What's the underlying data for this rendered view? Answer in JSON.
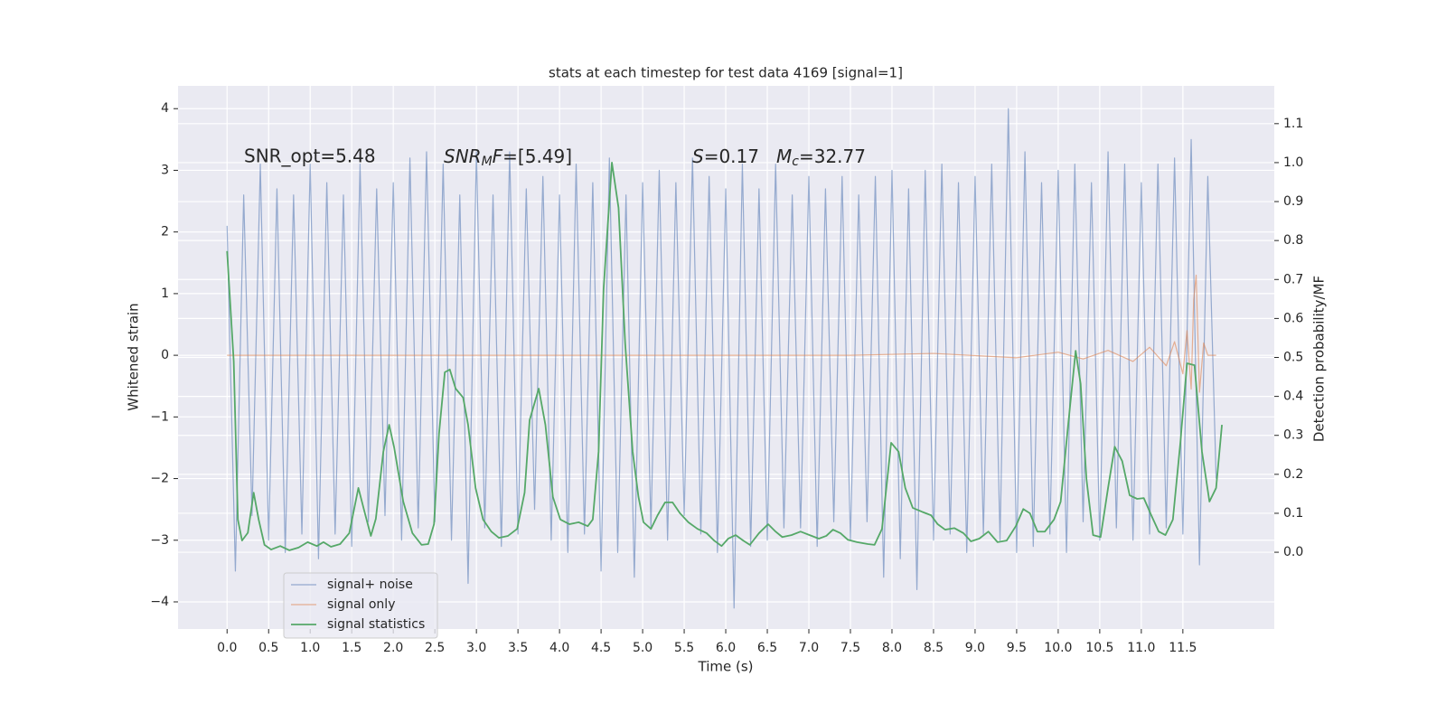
{
  "chart_data": {
    "type": "line",
    "title": "stats at each timestep for test data 4169 [signal=1]",
    "xlabel": "Time (s)",
    "ylabel": "Whitened strain",
    "y2label": "Detection probability/MF",
    "annotations": [
      [
        "SNR_opt=5.48"
      ],
      [
        "SNR",
        "M",
        "F",
        "=[5.49]"
      ],
      [
        "S",
        "=0.17"
      ],
      [
        "M",
        "c",
        "=32.77"
      ]
    ],
    "xlim": [
      -0.59,
      12.6
    ],
    "ylim": [
      -4.44,
      4.37
    ],
    "y2lim": [
      -0.197,
      1.197
    ],
    "xticks": [
      {
        "value": 0,
        "label": "0.0"
      },
      0.5,
      {
        "value": 1,
        "label": "1.0"
      },
      1.5,
      {
        "value": 2,
        "label": "2.0"
      },
      2.5,
      {
        "value": 3,
        "label": "3.0"
      },
      3.5,
      {
        "value": 4,
        "label": "4.0"
      },
      4.5,
      {
        "value": 5,
        "label": "5.0"
      },
      5.5,
      {
        "value": 6,
        "label": "6.0"
      },
      6.5,
      {
        "value": 7,
        "label": "7.0"
      },
      7.5,
      {
        "value": 8,
        "label": "8.0"
      },
      8.5,
      {
        "value": 9,
        "label": "9.0"
      },
      9.5,
      {
        "value": 10,
        "label": "10.0"
      },
      10.5,
      {
        "value": 11,
        "label": "11.0"
      },
      11.5
    ],
    "yticks": [
      {
        "value": -4,
        "label": "−4"
      },
      {
        "value": -3,
        "label": "−3"
      },
      {
        "value": -2,
        "label": "−2"
      },
      {
        "value": -1,
        "label": "−1"
      },
      0,
      1,
      2,
      3,
      4
    ],
    "y2ticks": [
      {
        "value": 0,
        "label": "0.0"
      },
      0.1,
      0.2,
      0.3,
      0.4,
      0.5,
      0.6,
      0.7,
      0.8,
      0.9,
      {
        "value": 1,
        "label": "1.0"
      },
      1.1
    ],
    "grid": true,
    "legend_position": "lower left",
    "series": [
      {
        "name": "signal+ noise",
        "color": "#4c72b0",
        "x": [
          0.0,
          0.1,
          0.2,
          0.3,
          0.4,
          0.5,
          0.6,
          0.7,
          0.8,
          0.9,
          1.0,
          1.1,
          1.2,
          1.3,
          1.4,
          1.5,
          1.6,
          1.7,
          1.8,
          1.9,
          2.0,
          2.1,
          2.2,
          2.3,
          2.4,
          2.5,
          2.6,
          2.7,
          2.8,
          2.9,
          3.0,
          3.1,
          3.2,
          3.3,
          3.4,
          3.5,
          3.6,
          3.7,
          3.8,
          3.9,
          4.0,
          4.1,
          4.2,
          4.3,
          4.4,
          4.5,
          4.6,
          4.7,
          4.8,
          4.9,
          5.0,
          5.1,
          5.2,
          5.3,
          5.4,
          5.5,
          5.6,
          5.7,
          5.8,
          5.9,
          6.0,
          6.1,
          6.2,
          6.3,
          6.4,
          6.5,
          6.6,
          6.7,
          6.8,
          6.9,
          7.0,
          7.1,
          7.2,
          7.3,
          7.4,
          7.5,
          7.6,
          7.7,
          7.8,
          7.9,
          8.0,
          8.1,
          8.2,
          8.3,
          8.4,
          8.5,
          8.6,
          8.7,
          8.8,
          8.9,
          9.0,
          9.1,
          9.2,
          9.3,
          9.4,
          9.5,
          9.6,
          9.7,
          9.8,
          9.9,
          10.0,
          10.1,
          10.2,
          10.3,
          10.4,
          10.5,
          10.6,
          10.7,
          10.8,
          10.9,
          11.0,
          11.1,
          11.2,
          11.3,
          11.4,
          11.5,
          11.6,
          11.7,
          11.8,
          11.9
        ],
        "values": [
          2.1,
          -3.5,
          2.6,
          -2.6,
          3.1,
          -3.0,
          2.7,
          -3.2,
          2.6,
          -2.9,
          3.1,
          -3.3,
          2.8,
          -2.9,
          2.6,
          -3.1,
          3.1,
          -2.7,
          2.7,
          -2.6,
          2.8,
          -3.0,
          3.2,
          -2.8,
          3.3,
          -2.7,
          3.1,
          -3.0,
          2.6,
          -3.7,
          3.3,
          -2.8,
          2.6,
          -3.1,
          3.3,
          -2.9,
          2.7,
          -2.5,
          2.9,
          -3.0,
          2.6,
          -3.2,
          3.1,
          -2.9,
          2.8,
          -3.5,
          3.2,
          -3.2,
          2.6,
          -3.6,
          2.8,
          -2.8,
          3.0,
          -3.0,
          2.8,
          -2.6,
          3.2,
          -2.9,
          2.9,
          -3.2,
          2.7,
          -4.1,
          3.1,
          -3.1,
          2.7,
          -3.0,
          3.1,
          -2.8,
          2.6,
          -2.8,
          2.9,
          -3.1,
          2.7,
          -2.7,
          2.9,
          -3.0,
          2.6,
          -2.7,
          2.9,
          -3.6,
          3.0,
          -3.3,
          2.7,
          -3.8,
          3.0,
          -3.0,
          3.1,
          -2.9,
          2.8,
          -3.2,
          2.9,
          -2.9,
          3.1,
          -3.0,
          4.0,
          -3.2,
          3.3,
          -3.1,
          2.8,
          -2.9,
          3.0,
          -3.2,
          3.1,
          -2.7,
          2.8,
          -3.0,
          3.3,
          -2.8,
          3.1,
          -3.0,
          2.8,
          -2.9,
          3.1,
          -2.8,
          3.2,
          -2.9,
          3.5,
          -3.4,
          2.9,
          -2.0
        ]
      },
      {
        "name": "signal only",
        "color": "#dd8452",
        "x": [
          0,
          7.5,
          8.5,
          9.5,
          10.0,
          10.3,
          10.6,
          10.9,
          11.1,
          11.3,
          11.4,
          11.5,
          11.55,
          11.6,
          11.63,
          11.66,
          11.7,
          11.75,
          11.8,
          11.9
        ],
        "values": [
          0,
          0,
          0.03,
          -0.04,
          0.05,
          -0.06,
          0.08,
          -0.1,
          0.13,
          -0.17,
          0.22,
          -0.3,
          0.4,
          -0.55,
          0.9,
          1.3,
          -0.6,
          0.2,
          0,
          0
        ]
      },
      {
        "name": "signal statistics",
        "color": "#55a868",
        "axis": "y2",
        "x": [
          0.0,
          0.08,
          0.13,
          0.18,
          0.25,
          0.32,
          0.38,
          0.45,
          0.53,
          0.64,
          0.75,
          0.86,
          0.97,
          1.08,
          1.16,
          1.25,
          1.36,
          1.47,
          1.58,
          1.65,
          1.73,
          1.79,
          1.88,
          1.95,
          2.01,
          2.12,
          2.23,
          2.34,
          2.42,
          2.49,
          2.55,
          2.62,
          2.68,
          2.75,
          2.84,
          2.9,
          2.99,
          3.08,
          3.18,
          3.27,
          3.38,
          3.49,
          3.58,
          3.64,
          3.75,
          3.83,
          3.92,
          4.01,
          4.12,
          4.23,
          4.34,
          4.4,
          4.47,
          4.53,
          4.63,
          4.71,
          4.79,
          4.88,
          4.95,
          5.01,
          5.1,
          5.18,
          5.27,
          5.36,
          5.45,
          5.55,
          5.66,
          5.77,
          5.86,
          5.95,
          6.03,
          6.12,
          6.21,
          6.29,
          6.4,
          6.51,
          6.6,
          6.68,
          6.79,
          6.9,
          7.01,
          7.12,
          7.21,
          7.29,
          7.38,
          7.47,
          7.58,
          7.71,
          7.79,
          7.88,
          7.99,
          8.08,
          8.16,
          8.25,
          8.36,
          8.47,
          8.55,
          8.64,
          8.75,
          8.86,
          8.95,
          9.05,
          9.16,
          9.27,
          9.38,
          9.49,
          9.58,
          9.66,
          9.75,
          9.84,
          9.95,
          10.03,
          10.12,
          10.21,
          10.27,
          10.34,
          10.42,
          10.51,
          10.6,
          10.68,
          10.77,
          10.86,
          10.95,
          11.03,
          11.12,
          11.21,
          11.29,
          11.38,
          11.47,
          11.55,
          11.64,
          11.73,
          11.82,
          11.9,
          11.97
        ],
        "values": [
          0.773,
          0.49,
          0.084,
          0.03,
          0.05,
          0.153,
          0.084,
          0.019,
          0.007,
          0.016,
          0.005,
          0.012,
          0.026,
          0.016,
          0.026,
          0.014,
          0.021,
          0.049,
          0.165,
          0.107,
          0.042,
          0.086,
          0.258,
          0.327,
          0.269,
          0.13,
          0.049,
          0.019,
          0.021,
          0.072,
          0.304,
          0.462,
          0.469,
          0.42,
          0.397,
          0.327,
          0.165,
          0.084,
          0.053,
          0.037,
          0.042,
          0.06,
          0.153,
          0.339,
          0.42,
          0.327,
          0.142,
          0.084,
          0.072,
          0.077,
          0.067,
          0.084,
          0.258,
          0.675,
          1.0,
          0.884,
          0.536,
          0.258,
          0.142,
          0.077,
          0.06,
          0.095,
          0.128,
          0.128,
          0.1,
          0.077,
          0.06,
          0.049,
          0.03,
          0.016,
          0.035,
          0.044,
          0.03,
          0.019,
          0.049,
          0.072,
          0.053,
          0.039,
          0.044,
          0.053,
          0.044,
          0.035,
          0.042,
          0.058,
          0.049,
          0.032,
          0.026,
          0.021,
          0.019,
          0.06,
          0.281,
          0.258,
          0.165,
          0.114,
          0.104,
          0.095,
          0.072,
          0.058,
          0.062,
          0.049,
          0.028,
          0.035,
          0.053,
          0.026,
          0.03,
          0.067,
          0.111,
          0.1,
          0.053,
          0.053,
          0.084,
          0.13,
          0.327,
          0.517,
          0.432,
          0.188,
          0.044,
          0.039,
          0.165,
          0.271,
          0.234,
          0.146,
          0.137,
          0.139,
          0.095,
          0.053,
          0.044,
          0.084,
          0.281,
          0.485,
          0.48,
          0.258,
          0.13,
          0.165,
          0.327
        ]
      }
    ]
  }
}
